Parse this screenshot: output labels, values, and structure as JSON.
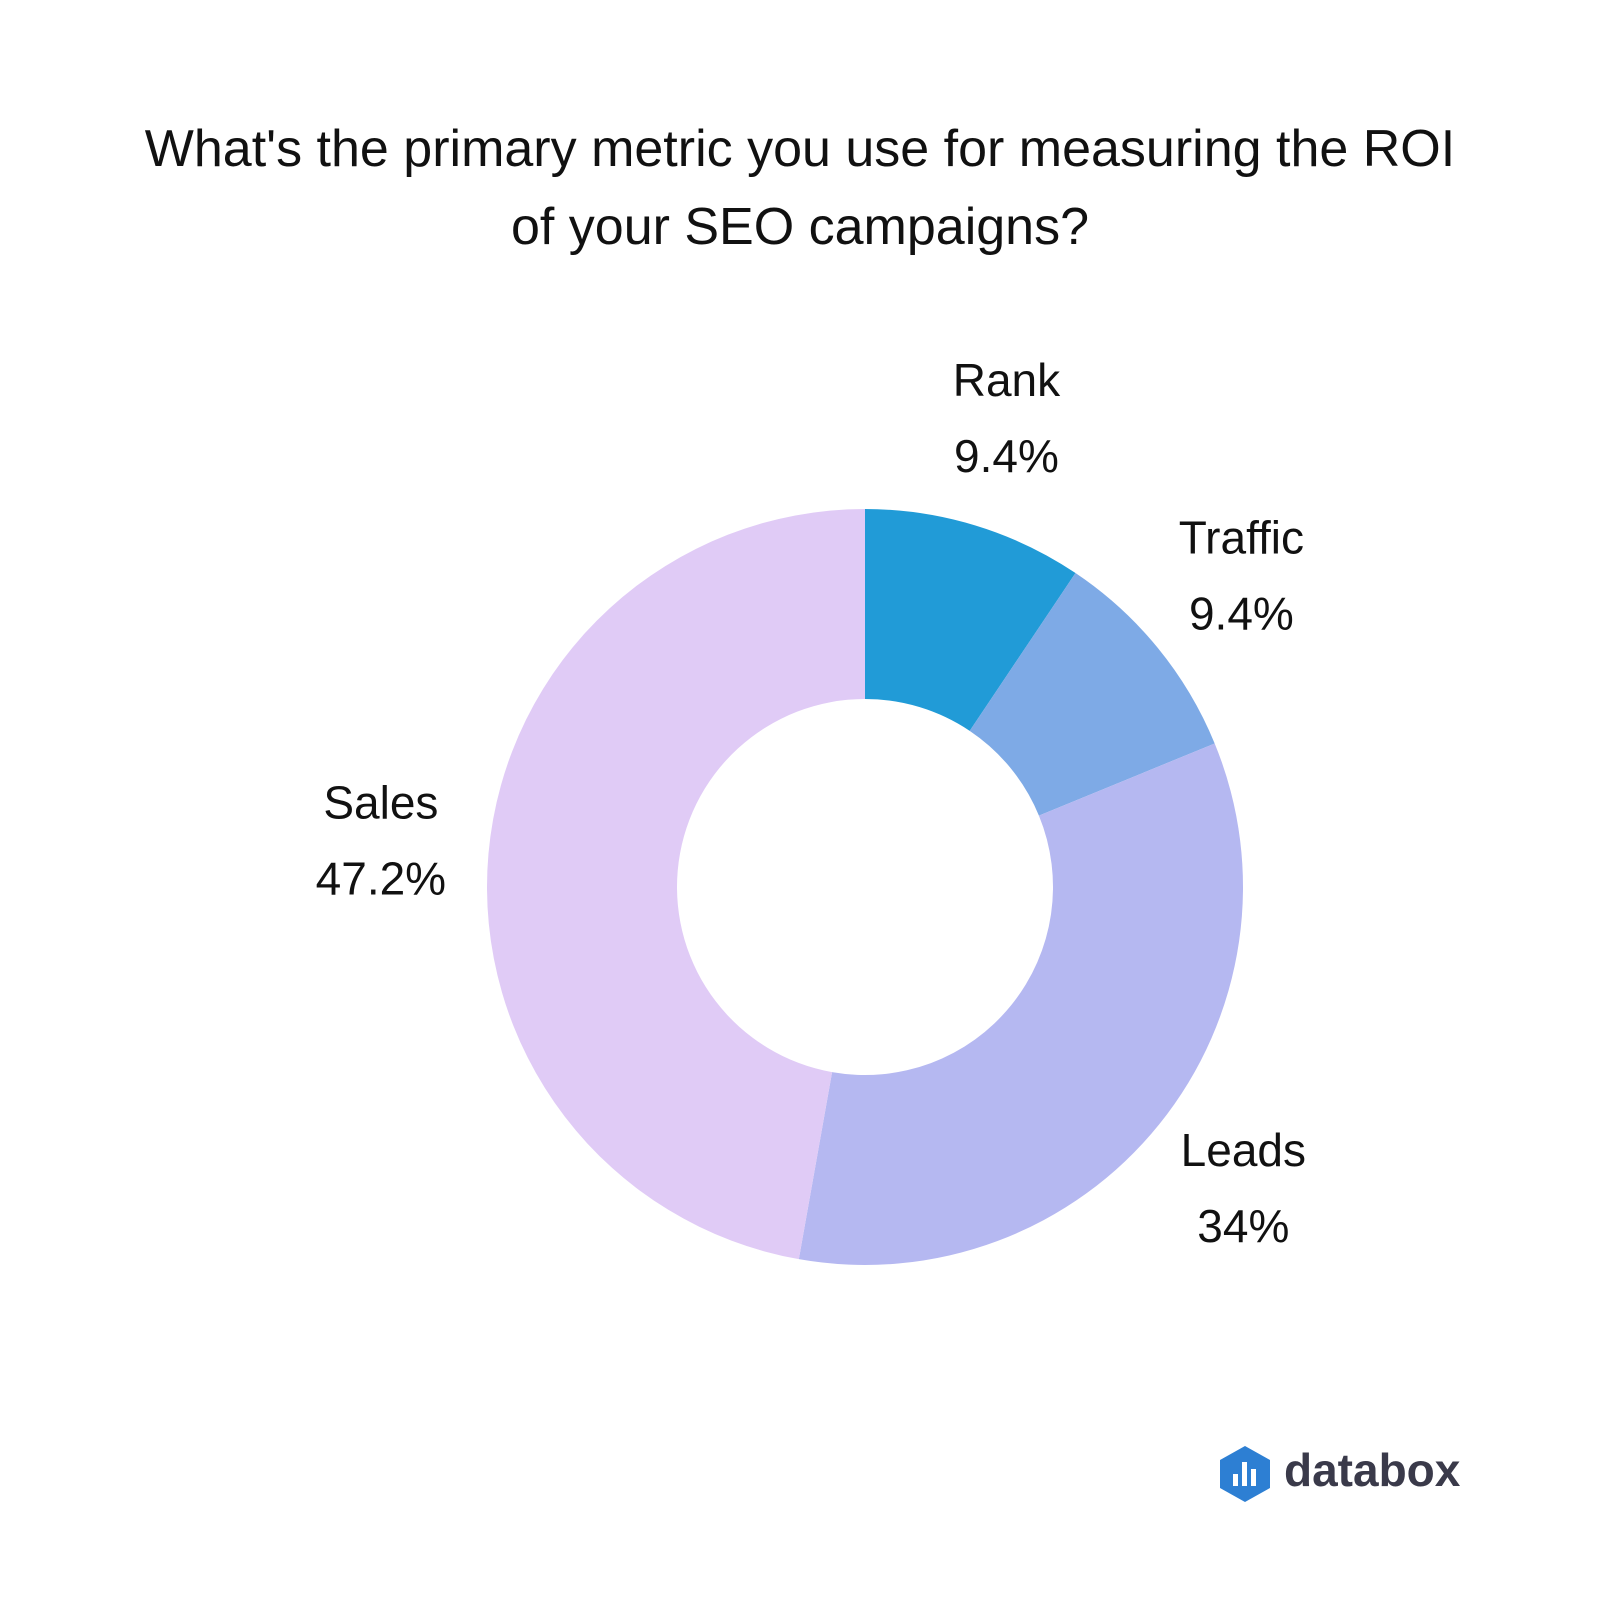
{
  "chart_data": {
    "type": "donut",
    "title": "What's the primary metric you use for measuring the ROI of your SEO campaigns?",
    "categories": [
      "Rank",
      "Traffic",
      "Leads",
      "Sales"
    ],
    "values": [
      9.4,
      9.4,
      34,
      47.2
    ],
    "value_labels": [
      "9.4%",
      "9.4%",
      "34%",
      "47.2%"
    ],
    "colors": [
      "#219bd7",
      "#7eaae6",
      "#b5b8f1",
      "#e0cbf6"
    ],
    "logo_text": "databox"
  }
}
